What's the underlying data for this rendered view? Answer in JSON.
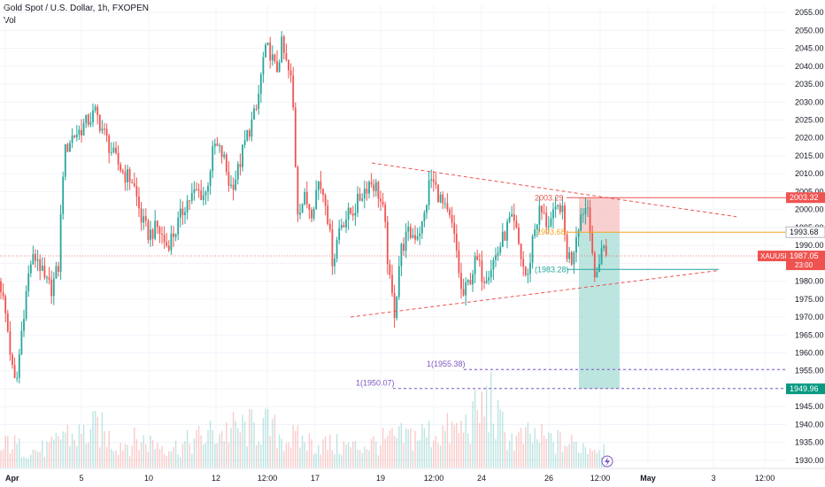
{
  "header": {
    "title": "Gold Spot / U.S. Dollar, 1h, FXOPEN",
    "volume_label": "Vol"
  },
  "colors": {
    "up": "#26a69a",
    "down": "#ef5350",
    "trendline": "#ef5350",
    "stop_zone": "#f8c4c4",
    "target_zone": "#a7dcd6",
    "entry_line": "#f5a623",
    "stop_line": "#ef5350",
    "tp_line": "#26a69a",
    "fib_line": "#7e57c2",
    "axis_text": "#131722"
  },
  "chart_data": {
    "type": "candlestick",
    "symbol": "XAUUSD",
    "ylim": [
      1928,
      2057
    ],
    "y_ticks": [
      1930,
      1935,
      1940,
      1945,
      1950,
      1955,
      1960,
      1965,
      1970,
      1975,
      1980,
      1985,
      1990,
      1995,
      2000,
      2005,
      2010,
      2015,
      2020,
      2025,
      2030,
      2035,
      2040,
      2045,
      2050,
      2055
    ],
    "x_ticks": [
      "Apr",
      "5",
      "10",
      "12",
      "12:00",
      "17",
      "19",
      "12:00",
      "24",
      "26",
      "12:00",
      "May",
      "3",
      "12:00"
    ],
    "price_path": [
      [
        0,
        1980
      ],
      [
        8,
        1968
      ],
      [
        14,
        1955
      ],
      [
        18,
        1950
      ],
      [
        26,
        1970
      ],
      [
        34,
        1985
      ],
      [
        42,
        1987
      ],
      [
        50,
        1980
      ],
      [
        58,
        1978
      ],
      [
        66,
        1984
      ],
      [
        72,
        2015
      ],
      [
        80,
        2020
      ],
      [
        90,
        2022
      ],
      [
        100,
        2025
      ],
      [
        108,
        2027
      ],
      [
        118,
        2021
      ],
      [
        128,
        2015
      ],
      [
        140,
        2010
      ],
      [
        150,
        2008
      ],
      [
        160,
        1997
      ],
      [
        168,
        1993
      ],
      [
        178,
        1995
      ],
      [
        188,
        1990
      ],
      [
        198,
        1994
      ],
      [
        210,
        2002
      ],
      [
        222,
        2005
      ],
      [
        232,
        2004
      ],
      [
        242,
        2018
      ],
      [
        252,
        2015
      ],
      [
        260,
        2006
      ],
      [
        268,
        2010
      ],
      [
        278,
        2020
      ],
      [
        290,
        2028
      ],
      [
        298,
        2043
      ],
      [
        304,
        2045
      ],
      [
        312,
        2038
      ],
      [
        318,
        2046
      ],
      [
        324,
        2040
      ],
      [
        330,
        2035
      ],
      [
        336,
        2000
      ],
      [
        344,
        2003
      ],
      [
        352,
        2000
      ],
      [
        360,
        2008
      ],
      [
        368,
        2003
      ],
      [
        376,
        1985
      ],
      [
        384,
        1996
      ],
      [
        392,
        1998
      ],
      [
        400,
        2000
      ],
      [
        410,
        2005
      ],
      [
        418,
        2008
      ],
      [
        426,
        2006
      ],
      [
        434,
        1998
      ],
      [
        440,
        1980
      ],
      [
        446,
        1971
      ],
      [
        452,
        1988
      ],
      [
        460,
        1993
      ],
      [
        470,
        1993
      ],
      [
        478,
        1996
      ],
      [
        486,
        2009
      ],
      [
        494,
        2005
      ],
      [
        502,
        2000
      ],
      [
        510,
        1996
      ],
      [
        516,
        1988
      ],
      [
        522,
        1975
      ],
      [
        530,
        1980
      ],
      [
        538,
        1986
      ],
      [
        546,
        1981
      ],
      [
        554,
        1984
      ],
      [
        562,
        1988
      ],
      [
        570,
        1993
      ],
      [
        576,
        1997
      ],
      [
        582,
        1995
      ],
      [
        590,
        1985
      ],
      [
        596,
        1980
      ],
      [
        602,
        1993
      ],
      [
        610,
        2000
      ],
      [
        618,
        1996
      ],
      [
        626,
        1998
      ],
      [
        634,
        2002
      ],
      [
        640,
        1988
      ],
      [
        646,
        1986
      ],
      [
        652,
        1995
      ],
      [
        658,
        2000
      ],
      [
        664,
        2001
      ],
      [
        668,
        1993
      ],
      [
        672,
        1978
      ],
      [
        676,
        1985
      ],
      [
        680,
        1990
      ],
      [
        686,
        1987
      ]
    ],
    "volume_profile": [
      [
        0,
        0.2
      ],
      [
        10,
        0.4
      ],
      [
        20,
        0.3
      ],
      [
        40,
        0.25
      ],
      [
        60,
        0.3
      ],
      [
        72,
        0.55
      ],
      [
        80,
        0.45
      ],
      [
        100,
        0.5
      ],
      [
        110,
        0.6
      ],
      [
        130,
        0.35
      ],
      [
        160,
        0.4
      ],
      [
        200,
        0.3
      ],
      [
        240,
        0.5
      ],
      [
        260,
        0.55
      ],
      [
        300,
        0.6
      ],
      [
        320,
        0.45
      ],
      [
        340,
        0.4
      ],
      [
        360,
        0.35
      ],
      [
        400,
        0.3
      ],
      [
        440,
        0.4
      ],
      [
        480,
        0.5
      ],
      [
        520,
        0.55
      ],
      [
        556,
        1.0
      ],
      [
        560,
        0.7
      ],
      [
        580,
        0.4
      ],
      [
        600,
        0.45
      ],
      [
        640,
        0.35
      ],
      [
        680,
        0.3
      ]
    ],
    "upper_trendline": {
      "from": [
        "420",
        2013
      ],
      "to": [
        "832",
        1998
      ]
    },
    "lower_trendline": {
      "from": [
        "396",
        1970
      ],
      "to": [
        "812",
        1983
      ]
    },
    "position": {
      "entry": 1993.68,
      "stop": 2003.32,
      "target": 1949.96,
      "entry_label": "1993.68",
      "stop_label": "2003.32",
      "target_label": "1949.96"
    },
    "annotations": [
      {
        "text": "2003.29",
        "price": 2003.29,
        "kind": "stop"
      },
      {
        "text": "1993.68",
        "price": 1993.68,
        "kind": "entry"
      },
      {
        "text": "(1983.28)",
        "price": 1983.28,
        "kind": "tp"
      },
      {
        "text": "1(1955.38)",
        "price": 1955.38,
        "kind": "fib"
      },
      {
        "text": "1(1950.07)",
        "price": 1950.07,
        "kind": "fib"
      }
    ],
    "current_price": {
      "symbol": "XAUUSD",
      "price": 1987.05,
      "price_label": "1987.05",
      "countdown": "23:00"
    }
  }
}
